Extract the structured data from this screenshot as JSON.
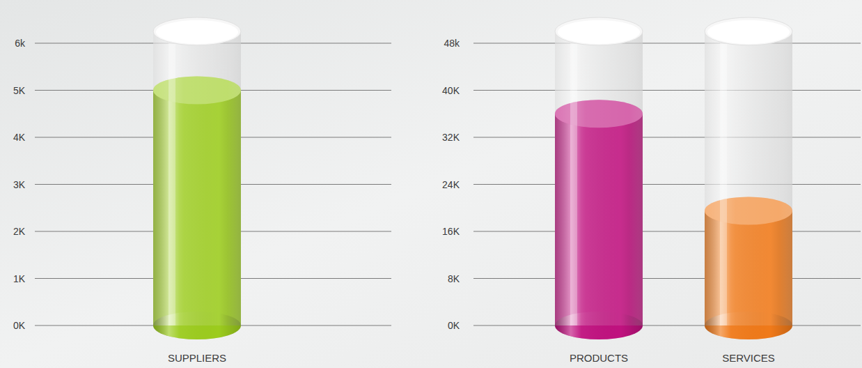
{
  "chart_data": [
    {
      "type": "bar",
      "categories": [
        "SUPPLIERS"
      ],
      "values": [
        5000
      ],
      "color": "#9ccc1e",
      "ylim": [
        0,
        6000
      ],
      "yticks": [
        {
          "value": 0,
          "label": "0K"
        },
        {
          "value": 1000,
          "label": "1K"
        },
        {
          "value": 2000,
          "label": "2K"
        },
        {
          "value": 3000,
          "label": "3K"
        },
        {
          "value": 4000,
          "label": "4K"
        },
        {
          "value": 5000,
          "label": "5K"
        },
        {
          "value": 6000,
          "label": "6k"
        }
      ],
      "grid": true
    },
    {
      "type": "bar",
      "categories": [
        "PRODUCTS",
        "SERVICES"
      ],
      "values": [
        36000,
        19500
      ],
      "colors": [
        "#c0127f",
        "#f07a1a"
      ],
      "ylim": [
        0,
        48000
      ],
      "yticks": [
        {
          "value": 0,
          "label": "0K"
        },
        {
          "value": 8000,
          "label": "8K"
        },
        {
          "value": 16000,
          "label": "16K"
        },
        {
          "value": 24000,
          "label": "24K"
        },
        {
          "value": 32000,
          "label": "32K"
        },
        {
          "value": 40000,
          "label": "40K"
        },
        {
          "value": 48000,
          "label": "48k"
        }
      ],
      "grid": true
    }
  ]
}
